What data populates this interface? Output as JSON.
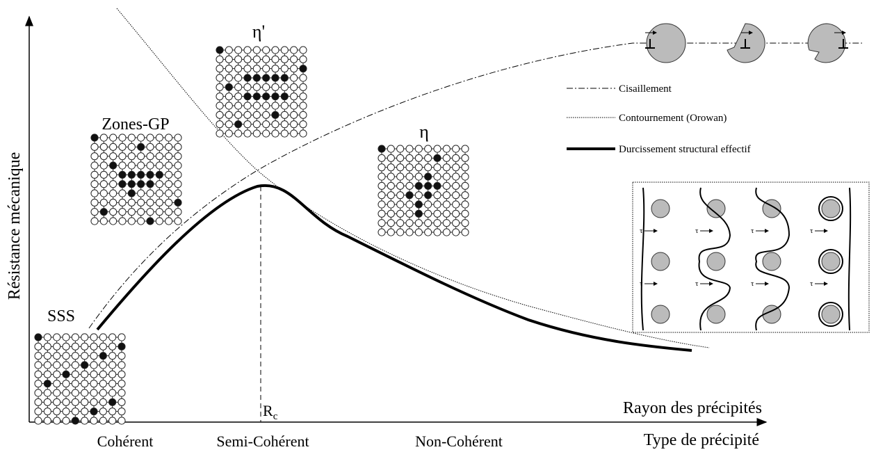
{
  "axes": {
    "y_label": "Résistance mécanique",
    "x_label": "Rayon des précipités",
    "x2_label": "Type de précipité",
    "critical_radius": {
      "main": "R",
      "sub": "c"
    }
  },
  "precipitate_types": [
    "Cohérent",
    "Semi-Cohérent",
    "Non-Cohérent"
  ],
  "structures": [
    "SSS",
    "Zones-GP",
    "η'",
    "η"
  ],
  "legend": [
    "Cisaillement",
    "Contournement (Orowan)",
    "Durcissement structural effectif"
  ],
  "stress_symbol": "τ"
}
